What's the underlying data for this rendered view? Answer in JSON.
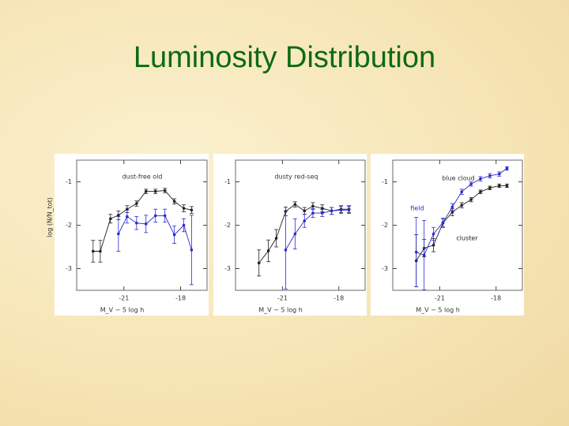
{
  "title": "Luminosity Distribution",
  "chart_data": [
    {
      "type": "line",
      "annotation": "dust-free old",
      "x_label": "M_V − 5 log h",
      "y_label": "log (N/N_tot)",
      "xlim": [
        -23.5,
        -16.6
      ],
      "ylim": [
        -3.5,
        -0.5
      ],
      "xticks": [
        -21,
        -18
      ],
      "yticks": [
        -1,
        -2,
        -3
      ],
      "series": [
        {
          "color": "#222222",
          "x": [
            -22.63,
            -22.25,
            -21.71,
            -21.29,
            -20.83,
            -20.33,
            -19.83,
            -19.33,
            -18.83,
            -18.33,
            -17.83,
            -17.42
          ],
          "values": [
            -2.6,
            -2.6,
            -1.85,
            -1.77,
            -1.63,
            -1.5,
            -1.22,
            -1.22,
            -1.2,
            -1.45,
            -1.61,
            -1.65
          ],
          "errors": [
            0.25,
            0.25,
            0.1,
            0.1,
            0.08,
            0.06,
            0.05,
            0.05,
            0.05,
            0.06,
            0.08,
            0.08
          ]
        },
        {
          "color": "#2a2ad0",
          "x": [
            -21.29,
            -20.83,
            -20.33,
            -19.83,
            -19.33,
            -18.83,
            -18.33,
            -17.83,
            -17.42
          ],
          "values": [
            -2.2,
            -1.8,
            -1.95,
            -1.97,
            -1.78,
            -1.78,
            -2.22,
            -2.0,
            -2.57
          ],
          "errors": [
            0.4,
            0.15,
            0.15,
            0.2,
            0.15,
            0.15,
            0.2,
            0.15,
            0.8
          ]
        }
      ]
    },
    {
      "type": "line",
      "annotation": "dusty red-seq",
      "x_label": "M_V − 5 log h",
      "xlim": [
        -23.5,
        -16.6
      ],
      "ylim": [
        -3.5,
        -0.5
      ],
      "xticks": [
        -21,
        -18
      ],
      "yticks": [
        -1,
        -2,
        -3
      ],
      "series": [
        {
          "color": "#222222",
          "x": [
            -22.25,
            -21.75,
            -21.33,
            -20.83,
            -20.33,
            -19.83,
            -19.38,
            -18.88,
            -18.38,
            -17.88,
            -17.46
          ],
          "values": [
            -2.87,
            -2.59,
            -2.3,
            -1.68,
            -1.52,
            -1.67,
            -1.56,
            -1.61,
            -1.67,
            -1.63,
            -1.63
          ],
          "errors": [
            0.3,
            0.25,
            0.2,
            0.1,
            0.06,
            0.08,
            0.08,
            0.08,
            0.08,
            0.08,
            0.08
          ]
        },
        {
          "color": "#2a2ad0",
          "x": [
            -20.83,
            -20.33,
            -19.83,
            -19.38,
            -18.88,
            -18.38,
            -17.88,
            -17.46
          ],
          "values": [
            -2.57,
            -2.2,
            -1.9,
            -1.72,
            -1.72,
            -1.67,
            -1.65,
            -1.65
          ],
          "errors": [
            0.9,
            0.35,
            0.15,
            0.1,
            0.08,
            0.08,
            0.08,
            0.08
          ]
        }
      ]
    },
    {
      "type": "line",
      "annotation": "blue cloud",
      "x_label": "M_V − 5 log h",
      "xlim": [
        -23.5,
        -16.6
      ],
      "ylim": [
        -3.5,
        -0.5
      ],
      "xticks": [
        -21,
        -18
      ],
      "yticks": [
        -1,
        -2,
        -3
      ],
      "series": [
        {
          "name": "cluster",
          "color": "#222222",
          "x": [
            -22.25,
            -21.83,
            -21.33,
            -20.83,
            -20.33,
            -19.83,
            -19.33,
            -18.83,
            -18.33,
            -17.83,
            -17.42
          ],
          "values": [
            -2.82,
            -2.53,
            -2.46,
            -1.95,
            -1.7,
            -1.54,
            -1.41,
            -1.23,
            -1.14,
            -1.09,
            -1.09
          ],
          "errors": [
            0.6,
            0.2,
            0.15,
            0.1,
            0.08,
            0.06,
            0.05,
            0.04,
            0.04,
            0.04,
            0.04
          ]
        },
        {
          "name": "field",
          "color": "#2a2ad0",
          "x": [
            -22.25,
            -21.83,
            -21.33,
            -20.83,
            -20.33,
            -19.83,
            -19.33,
            -18.83,
            -18.33,
            -17.83,
            -17.42
          ],
          "values": [
            -2.62,
            -2.69,
            -2.2,
            -1.94,
            -1.58,
            -1.23,
            -1.05,
            -0.93,
            -0.86,
            -0.82,
            -0.69
          ],
          "errors": [
            0.8,
            0.8,
            0.15,
            0.1,
            0.08,
            0.06,
            0.05,
            0.05,
            0.05,
            0.05,
            0.04
          ]
        }
      ]
    }
  ]
}
